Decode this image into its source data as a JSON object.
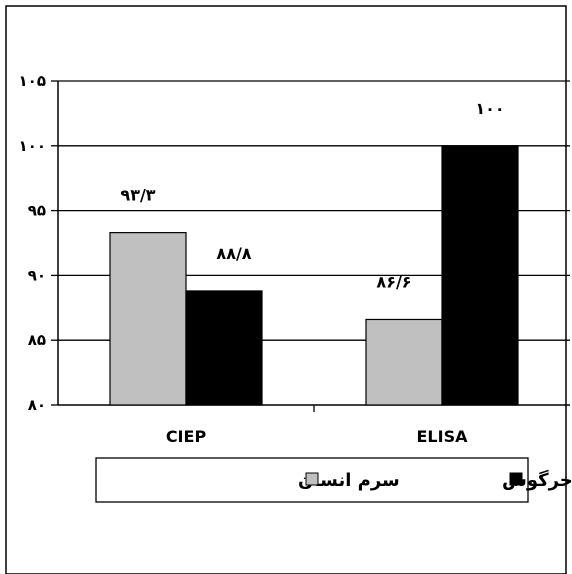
{
  "chart_data": {
    "type": "bar",
    "categories": [
      "CIEP",
      "ELISA"
    ],
    "series": [
      {
        "name": "سرم انسان",
        "values": [
          93.3,
          86.6
        ],
        "labels": [
          "۹۳/۳",
          "۸۶/۶"
        ],
        "color": "#c0c0c0"
      },
      {
        "name": "سرم خرگوش",
        "values": [
          88.8,
          100
        ],
        "labels": [
          "۸۸/۸",
          "۱۰۰"
        ],
        "color": "#000000"
      }
    ],
    "ylim": [
      80,
      105
    ],
    "yticks": [
      80,
      85,
      90,
      95,
      100,
      105
    ],
    "ytick_labels": [
      "۸۰",
      "۸۵",
      "۹۰",
      "۹۵",
      "۱۰۰",
      "۱۰۵"
    ],
    "grid": true,
    "legend_position": "bottom"
  }
}
